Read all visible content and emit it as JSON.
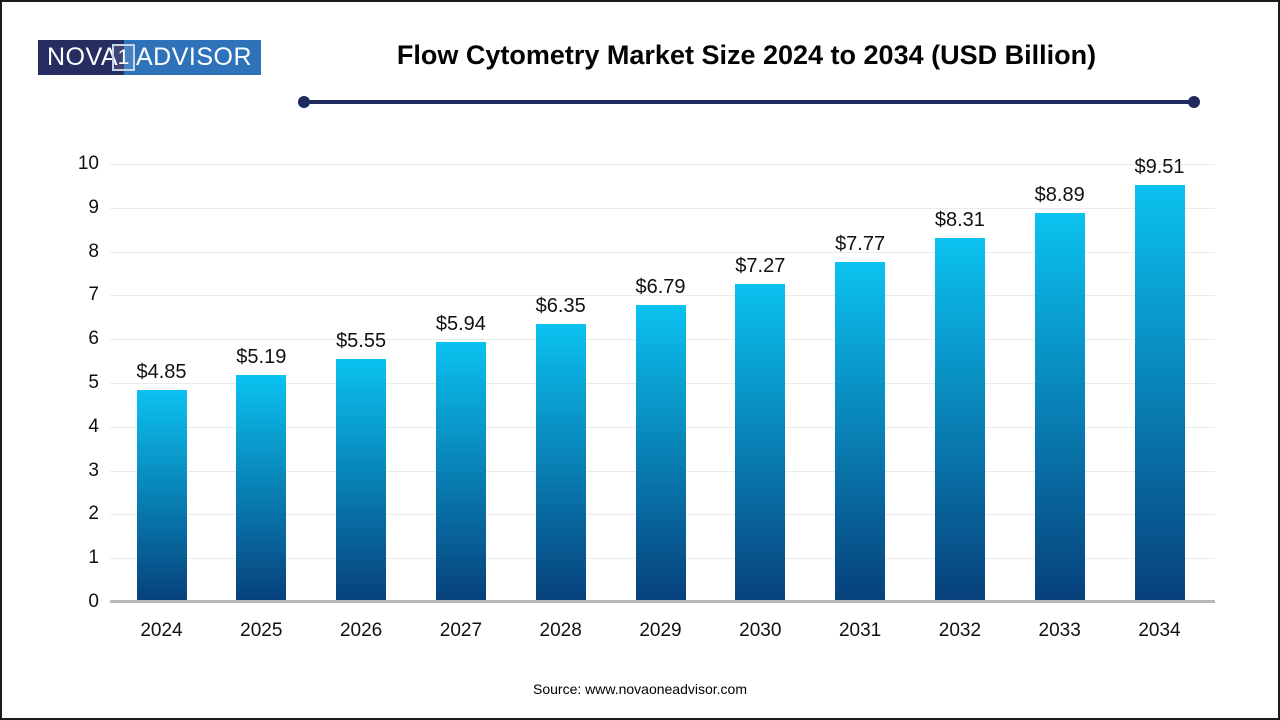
{
  "logo": {
    "part1": "NOVA",
    "part2": "1",
    "part3": "ADVISOR",
    "navy_color": "#262d60",
    "blue_color": "#2e72b9"
  },
  "header": {
    "title": "Flow Cytometry Market Size 2024 to 2034 (USD Billion)",
    "underline_color": "#1f2a5e"
  },
  "chart_data": {
    "type": "bar",
    "categories": [
      "2024",
      "2025",
      "2026",
      "2027",
      "2028",
      "2029",
      "2030",
      "2031",
      "2032",
      "2033",
      "2034"
    ],
    "values": [
      4.85,
      5.19,
      5.55,
      5.94,
      6.35,
      6.79,
      7.27,
      7.77,
      8.31,
      8.89,
      9.51
    ],
    "value_labels": [
      "$4.85",
      "$5.19",
      "$5.55",
      "$5.94",
      "$6.35",
      "$6.79",
      "$7.27",
      "$7.77",
      "$8.31",
      "$8.89",
      "$9.51"
    ],
    "title": "Flow Cytometry Market Size 2024 to 2034 (USD Billion)",
    "xlabel": "",
    "ylabel": "",
    "ylim": [
      0,
      10
    ],
    "yticks": [
      0,
      1,
      2,
      3,
      4,
      5,
      6,
      7,
      8,
      9,
      10
    ],
    "grid": true,
    "legend": false,
    "bar_gradient_top": "#0bc2f0",
    "bar_gradient_bottom": "#07407b",
    "gridline_color": "#ebebeb",
    "baseline_color": "#b8b8b8"
  },
  "footer": {
    "source": "Source: www.novaoneadvisor.com"
  }
}
